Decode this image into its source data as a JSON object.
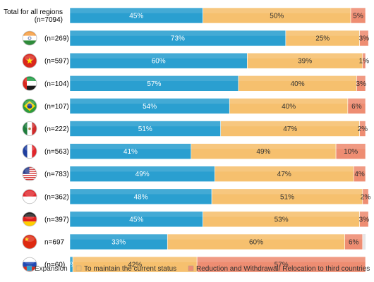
{
  "chart_data": {
    "type": "bar",
    "orientation": "horizontal",
    "stacked": true,
    "xlim": [
      0,
      100
    ],
    "categories": [
      {
        "label": "Total for all regions",
        "n": "(n=7094)",
        "flag": null
      },
      {
        "label": "",
        "n": "(n=269)",
        "flag": "india-flag-icon"
      },
      {
        "label": "",
        "n": "(n=597)",
        "flag": "vietnam-flag-icon"
      },
      {
        "label": "",
        "n": "(n=104)",
        "flag": "uae-flag-icon"
      },
      {
        "label": "",
        "n": "(n=107)",
        "flag": "brazil-flag-icon"
      },
      {
        "label": "",
        "n": "(n=222)",
        "flag": "mexico-flag-icon"
      },
      {
        "label": "",
        "n": "(n=563)",
        "flag": "france-flag-icon"
      },
      {
        "label": "",
        "n": "(n=783)",
        "flag": "usa-flag-icon"
      },
      {
        "label": "",
        "n": "(n=362)",
        "flag": "indonesia-flag-icon"
      },
      {
        "label": "",
        "n": "(n=397)",
        "flag": "germany-flag-icon"
      },
      {
        "label": "",
        "n": "n=697",
        "flag": "china-flag-icon"
      },
      {
        "label": "",
        "n": "(n=60)",
        "flag": "russia-flag-icon"
      }
    ],
    "series": [
      {
        "name": "Expansion",
        "color": "#2a9fd0",
        "values": [
          45,
          73,
          60,
          57,
          54,
          51,
          41,
          49,
          48,
          45,
          33,
          1
        ],
        "labels": [
          "45%",
          "73%",
          "60%",
          "57%",
          "54%",
          "51%",
          "41%",
          "49%",
          "48%",
          "45%",
          "33%",
          "1%"
        ]
      },
      {
        "name": "To maintain the current status",
        "color": "#f6c06e",
        "values": [
          50,
          25,
          39,
          40,
          40,
          47,
          49,
          47,
          51,
          53,
          60,
          42
        ],
        "labels": [
          "50%",
          "25%",
          "39%",
          "40%",
          "40%",
          "47%",
          "49%",
          "47%",
          "51%",
          "53%",
          "60%",
          "42%"
        ]
      },
      {
        "name": "Reduction and Withdrawal/ Relocation to third countries",
        "color": "#ee8d72",
        "values": [
          5,
          3,
          1,
          3,
          6,
          2,
          10,
          4,
          2,
          3,
          6,
          57
        ],
        "labels": [
          "5%",
          "3%",
          "1%",
          "3%",
          "6%",
          "2%",
          "10%",
          "4%",
          "2%",
          "3%",
          "6%",
          "57%"
        ]
      }
    ],
    "legend_position": "bottom"
  }
}
